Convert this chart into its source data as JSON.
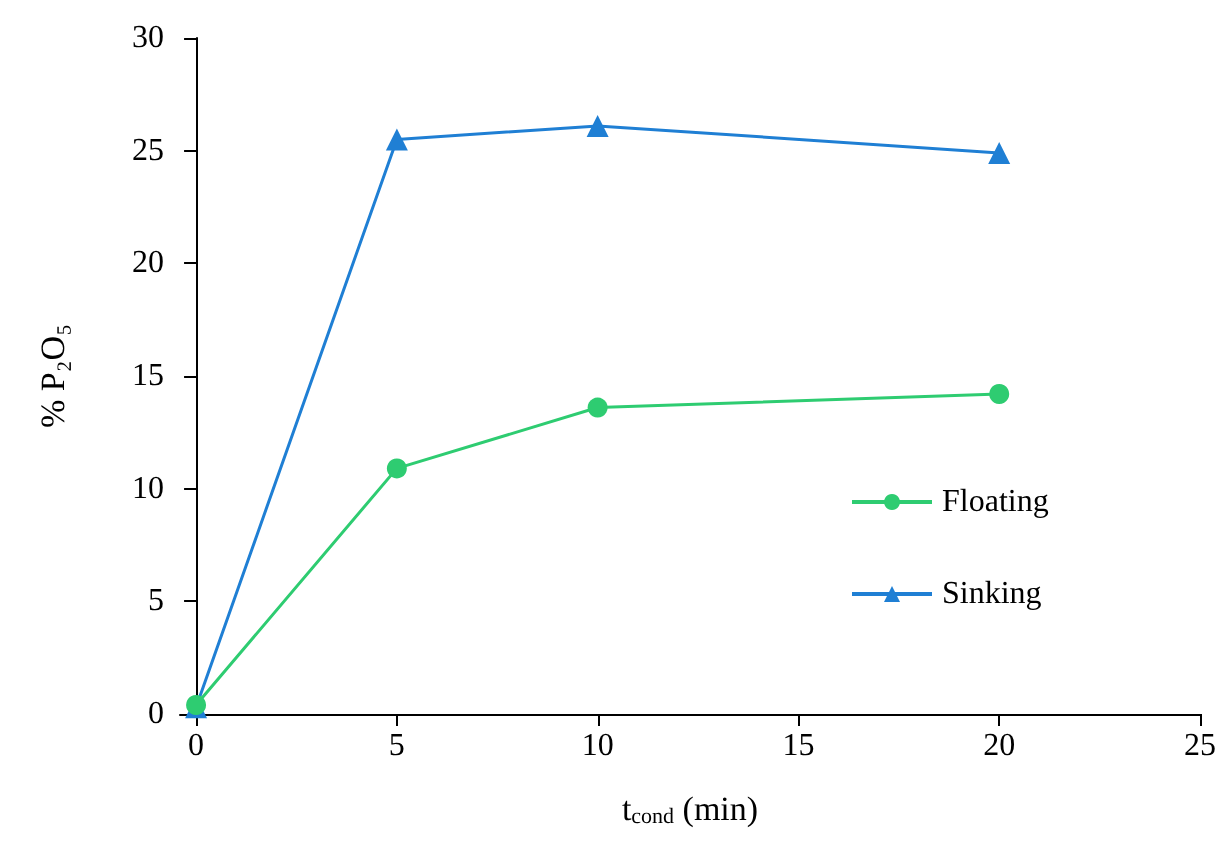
{
  "chart_data": {
    "type": "line",
    "xlabel": "t$_{cond}$ (min)",
    "ylabel": "% P₂O₅",
    "x": [
      0,
      5,
      10,
      20
    ],
    "series": [
      {
        "name": "Floating",
        "color": "#2ecc71",
        "marker": "circle",
        "values": [
          0.4,
          10.9,
          13.6,
          14.2
        ]
      },
      {
        "name": "Sinking",
        "color": "#1f7fd4",
        "marker": "triangle",
        "values": [
          0.3,
          25.5,
          26.1,
          24.9
        ]
      }
    ],
    "xlim": [
      -0.4,
      25
    ],
    "xticks": [
      0,
      5,
      10,
      15,
      20,
      25
    ],
    "ylim": [
      0,
      30
    ],
    "yticks": [
      0,
      5,
      10,
      15,
      20,
      25,
      30
    ],
    "grid": false,
    "legend": "right"
  }
}
